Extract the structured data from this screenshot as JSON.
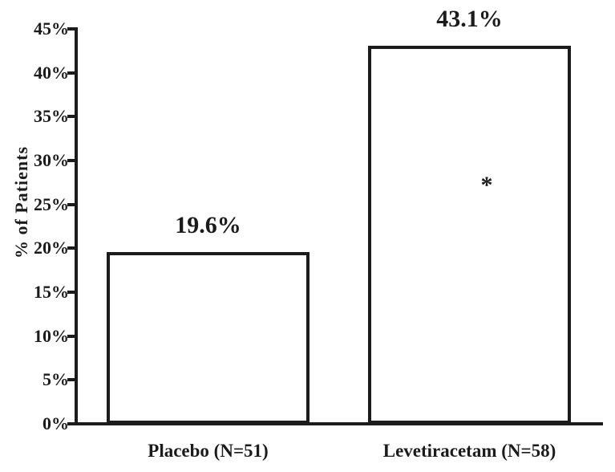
{
  "chart_data": {
    "type": "bar",
    "title": "",
    "xlabel": "",
    "ylabel": "% of Patients",
    "ylim": [
      0,
      45
    ],
    "ytick_interval": 5,
    "ytick_labels": [
      "0%",
      "5%",
      "10%",
      "15%",
      "20%",
      "25%",
      "30%",
      "35%",
      "40%",
      "45%"
    ],
    "categories": [
      "Placebo (N=51)",
      "Levetiracetam (N=58)"
    ],
    "values": [
      19.6,
      43.1
    ],
    "value_labels": [
      "19.6%",
      "43.1%"
    ],
    "annotations": [
      {
        "text": "*",
        "bar_index": 1
      }
    ],
    "legend": null,
    "grid": false,
    "bar_fill": "#ffffff",
    "bar_border": "#1b1b1b"
  },
  "colors": {
    "ink": "#1b1b1b",
    "background": "#ffffff"
  }
}
